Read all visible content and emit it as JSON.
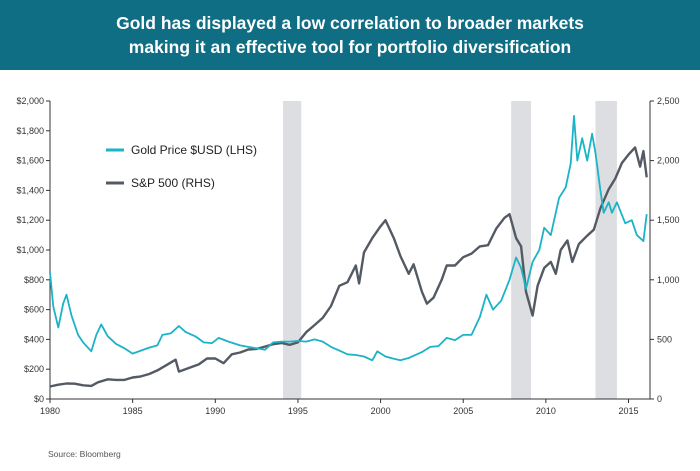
{
  "header": {
    "title_line1": "Gold has displayed a low correlation to broader markets",
    "title_line2": "making it an effective tool for portfolio diversification"
  },
  "source": "Source: Bloomberg",
  "colors": {
    "header_bg": "#0f6d84",
    "gold": "#1bb3c6",
    "sp500": "#545a64",
    "shade": "#dcdee1"
  },
  "chart_data": {
    "type": "line",
    "x_ticks": [
      "1980",
      "1985",
      "1990",
      "1995",
      "2000",
      "2005",
      "2010",
      "2015"
    ],
    "xlim": [
      1980,
      2016.3
    ],
    "y_left_ticks": [
      "$0",
      "$200",
      "$400",
      "$600",
      "$800",
      "$1,000",
      "$1,200",
      "$1,400",
      "$1,600",
      "$1,800",
      "$2,000"
    ],
    "ylim_left": [
      0,
      2000
    ],
    "y_right_ticks": [
      "0",
      "500",
      "1,000",
      "1,500",
      "2,000",
      "2,500"
    ],
    "ylim_right": [
      0,
      2500
    ],
    "legend_position": "top-left",
    "shaded_periods": [
      [
        1994.1,
        1995.2
      ],
      [
        2007.9,
        2009.1
      ],
      [
        2013.0,
        2014.3
      ]
    ],
    "series": [
      {
        "name": "Gold Price $USD (LHS)",
        "axis": "left",
        "points": [
          [
            1980.0,
            850
          ],
          [
            1980.2,
            620
          ],
          [
            1980.5,
            480
          ],
          [
            1980.8,
            640
          ],
          [
            1981.0,
            700
          ],
          [
            1981.3,
            560
          ],
          [
            1981.7,
            430
          ],
          [
            1982.0,
            380
          ],
          [
            1982.5,
            320
          ],
          [
            1982.8,
            430
          ],
          [
            1983.1,
            500
          ],
          [
            1983.5,
            420
          ],
          [
            1984.0,
            370
          ],
          [
            1984.5,
            340
          ],
          [
            1985.0,
            305
          ],
          [
            1985.5,
            325
          ],
          [
            1986.0,
            345
          ],
          [
            1986.5,
            360
          ],
          [
            1986.8,
            430
          ],
          [
            1987.3,
            440
          ],
          [
            1987.8,
            490
          ],
          [
            1988.2,
            450
          ],
          [
            1988.8,
            420
          ],
          [
            1989.3,
            380
          ],
          [
            1989.8,
            375
          ],
          [
            1990.2,
            410
          ],
          [
            1990.8,
            385
          ],
          [
            1991.5,
            360
          ],
          [
            1992.0,
            350
          ],
          [
            1992.5,
            340
          ],
          [
            1993.0,
            330
          ],
          [
            1993.5,
            380
          ],
          [
            1994.0,
            385
          ],
          [
            1994.5,
            385
          ],
          [
            1995.0,
            390
          ],
          [
            1995.5,
            385
          ],
          [
            1996.0,
            400
          ],
          [
            1996.5,
            385
          ],
          [
            1997.0,
            350
          ],
          [
            1997.5,
            325
          ],
          [
            1998.0,
            300
          ],
          [
            1998.5,
            295
          ],
          [
            1999.0,
            285
          ],
          [
            1999.5,
            260
          ],
          [
            1999.8,
            320
          ],
          [
            2000.3,
            285
          ],
          [
            2000.8,
            270
          ],
          [
            2001.2,
            260
          ],
          [
            2001.7,
            275
          ],
          [
            2002.0,
            290
          ],
          [
            2002.5,
            315
          ],
          [
            2003.0,
            350
          ],
          [
            2003.5,
            355
          ],
          [
            2004.0,
            410
          ],
          [
            2004.5,
            395
          ],
          [
            2005.0,
            430
          ],
          [
            2005.5,
            430
          ],
          [
            2006.0,
            550
          ],
          [
            2006.4,
            700
          ],
          [
            2006.8,
            600
          ],
          [
            2007.3,
            660
          ],
          [
            2007.8,
            800
          ],
          [
            2008.2,
            950
          ],
          [
            2008.5,
            880
          ],
          [
            2008.8,
            740
          ],
          [
            2009.2,
            920
          ],
          [
            2009.6,
            1000
          ],
          [
            2009.9,
            1150
          ],
          [
            2010.3,
            1100
          ],
          [
            2010.8,
            1350
          ],
          [
            2011.2,
            1420
          ],
          [
            2011.5,
            1580
          ],
          [
            2011.7,
            1900
          ],
          [
            2011.9,
            1600
          ],
          [
            2012.2,
            1750
          ],
          [
            2012.5,
            1600
          ],
          [
            2012.8,
            1780
          ],
          [
            2013.0,
            1650
          ],
          [
            2013.3,
            1400
          ],
          [
            2013.5,
            1250
          ],
          [
            2013.8,
            1320
          ],
          [
            2014.0,
            1250
          ],
          [
            2014.3,
            1320
          ],
          [
            2014.8,
            1180
          ],
          [
            2015.2,
            1200
          ],
          [
            2015.5,
            1100
          ],
          [
            2015.9,
            1060
          ],
          [
            2016.1,
            1240
          ]
        ]
      },
      {
        "name": "S&P 500 (RHS)",
        "axis": "right",
        "points": [
          [
            1980.0,
            105
          ],
          [
            1980.5,
            120
          ],
          [
            1981.0,
            130
          ],
          [
            1981.5,
            128
          ],
          [
            1982.0,
            115
          ],
          [
            1982.5,
            110
          ],
          [
            1982.9,
            140
          ],
          [
            1983.5,
            165
          ],
          [
            1984.0,
            160
          ],
          [
            1984.5,
            160
          ],
          [
            1985.0,
            180
          ],
          [
            1985.5,
            190
          ],
          [
            1986.0,
            210
          ],
          [
            1986.5,
            240
          ],
          [
            1987.0,
            280
          ],
          [
            1987.6,
            330
          ],
          [
            1987.8,
            230
          ],
          [
            1988.5,
            265
          ],
          [
            1989.0,
            290
          ],
          [
            1989.5,
            340
          ],
          [
            1990.0,
            340
          ],
          [
            1990.5,
            300
          ],
          [
            1991.0,
            375
          ],
          [
            1991.5,
            390
          ],
          [
            1992.0,
            415
          ],
          [
            1992.5,
            420
          ],
          [
            1993.0,
            440
          ],
          [
            1993.5,
            460
          ],
          [
            1994.0,
            470
          ],
          [
            1994.5,
            455
          ],
          [
            1995.0,
            475
          ],
          [
            1995.5,
            560
          ],
          [
            1996.0,
            620
          ],
          [
            1996.5,
            680
          ],
          [
            1997.0,
            780
          ],
          [
            1997.5,
            950
          ],
          [
            1998.0,
            980
          ],
          [
            1998.5,
            1120
          ],
          [
            1998.7,
            970
          ],
          [
            1999.0,
            1230
          ],
          [
            1999.5,
            1350
          ],
          [
            2000.0,
            1450
          ],
          [
            2000.3,
            1500
          ],
          [
            2000.8,
            1350
          ],
          [
            2001.2,
            1200
          ],
          [
            2001.7,
            1050
          ],
          [
            2002.0,
            1130
          ],
          [
            2002.5,
            900
          ],
          [
            2002.8,
            800
          ],
          [
            2003.2,
            850
          ],
          [
            2003.7,
            1000
          ],
          [
            2004.0,
            1120
          ],
          [
            2004.5,
            1120
          ],
          [
            2005.0,
            1190
          ],
          [
            2005.5,
            1220
          ],
          [
            2006.0,
            1280
          ],
          [
            2006.5,
            1290
          ],
          [
            2007.0,
            1430
          ],
          [
            2007.5,
            1520
          ],
          [
            2007.8,
            1550
          ],
          [
            2008.2,
            1350
          ],
          [
            2008.5,
            1280
          ],
          [
            2008.8,
            900
          ],
          [
            2009.2,
            700
          ],
          [
            2009.5,
            950
          ],
          [
            2009.9,
            1100
          ],
          [
            2010.3,
            1150
          ],
          [
            2010.6,
            1050
          ],
          [
            2010.9,
            1250
          ],
          [
            2011.3,
            1330
          ],
          [
            2011.6,
            1150
          ],
          [
            2012.0,
            1300
          ],
          [
            2012.5,
            1370
          ],
          [
            2012.9,
            1420
          ],
          [
            2013.3,
            1600
          ],
          [
            2013.8,
            1760
          ],
          [
            2014.2,
            1850
          ],
          [
            2014.6,
            1980
          ],
          [
            2015.0,
            2050
          ],
          [
            2015.4,
            2110
          ],
          [
            2015.7,
            1950
          ],
          [
            2015.9,
            2080
          ],
          [
            2016.1,
            1860
          ]
        ]
      }
    ]
  }
}
